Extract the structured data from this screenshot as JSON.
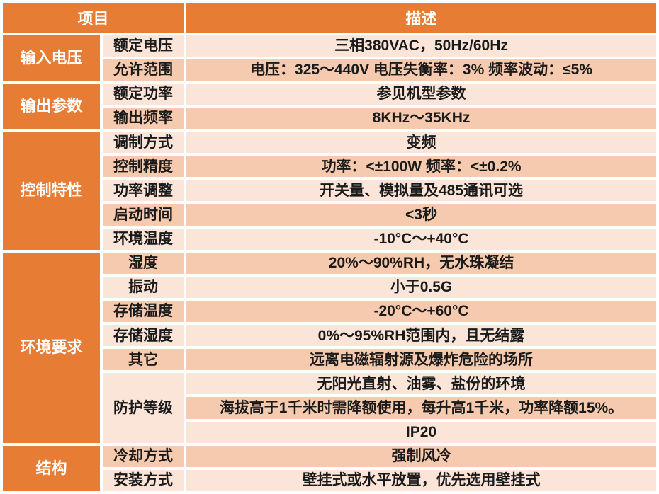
{
  "colors": {
    "accent_orange": "#E77C34",
    "row_light": "#FBE5D9",
    "row_dark": "#F6CAAE",
    "text_dark": "#1a1a1a",
    "header_text": "#ffffff",
    "grid_gap": "#ffffff"
  },
  "table": {
    "headers": {
      "item": "项目",
      "desc": "描述"
    },
    "sections": [
      {
        "label": "输入电压",
        "rows": [
          {
            "item": "额定电压",
            "desc": "三相380VAC，50Hz/60Hz"
          },
          {
            "item": "允许范围",
            "desc": "电压：325～440V 电压失衡率：3% 频率波动：≤5%"
          }
        ]
      },
      {
        "label": "输出参数",
        "rows": [
          {
            "item": "额定功率",
            "desc": "参见机型参数"
          },
          {
            "item": "输出频率",
            "desc": "8KHz～35KHz"
          }
        ]
      },
      {
        "label": "控制特性",
        "rows": [
          {
            "item": "调制方式",
            "desc": "变频"
          },
          {
            "item": "控制精度",
            "desc": "功率：<±100W 频率：<±0.2%"
          },
          {
            "item": "功率调整",
            "desc": "开关量、模拟量及485通讯可选"
          },
          {
            "item": "启动时间",
            "desc": "<3秒"
          },
          {
            "item": "环境温度",
            "desc": "-10°C～+40°C"
          }
        ]
      },
      {
        "label": "环境要求",
        "rows": [
          {
            "item": "湿度",
            "desc": "20%～90%RH，无水珠凝结"
          },
          {
            "item": "振动",
            "desc": "小于0.5G"
          },
          {
            "item": "存储温度",
            "desc": "-20°C～+60°C"
          },
          {
            "item": "存储湿度",
            "desc": "0%～95%RH范围内，且无结露"
          },
          {
            "item": "其它",
            "desc": "远离电磁辐射源及爆炸危险的场所"
          },
          {
            "item": "防护等级",
            "desc_lines": [
              "无阳光直射、油雾、盐份的环境",
              "海拔高于1千米时需降额使用，每升高1千米，功率降额15%。",
              "IP20"
            ]
          }
        ]
      },
      {
        "label": "结构",
        "rows": [
          {
            "item": "冷却方式",
            "desc": "强制风冷"
          },
          {
            "item": "安装方式",
            "desc": "壁挂式或水平放置，优先选用壁挂式"
          }
        ]
      }
    ]
  }
}
